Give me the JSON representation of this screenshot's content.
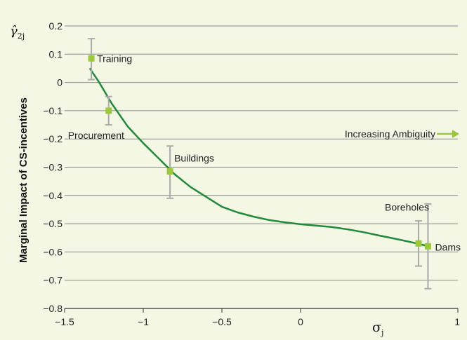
{
  "chart_data": {
    "type": "scatter",
    "ylabel": "Marginal Impact of CS-incentives",
    "y_symbol": "γ̂",
    "y_symbol_sub": "2j",
    "x_symbol": "σ",
    "x_symbol_sub": "j",
    "xlim": [
      -1.5,
      1
    ],
    "ylim": [
      -0.8,
      0.2
    ],
    "x_ticks": [
      "−1.5",
      "−1",
      "−0.5",
      "0",
      "1"
    ],
    "x_tick_values": [
      -1.5,
      -1,
      -0.5,
      0,
      1
    ],
    "y_ticks": [
      "0.2",
      "0.1",
      "0",
      "−0.1",
      "−0.2",
      "−0.3",
      "−0.4",
      "−0.5",
      "−0.6",
      "−0.7",
      "−0.8"
    ],
    "y_tick_values": [
      0.2,
      0.1,
      0,
      -0.1,
      -0.2,
      -0.3,
      -0.4,
      -0.5,
      -0.6,
      -0.7,
      -0.8
    ],
    "grid": "horizontal",
    "annotation": "Increasing Ambiguity",
    "points": [
      {
        "label": "Training",
        "x": -1.33,
        "y": 0.085,
        "err_low": 0.01,
        "err_high": 0.155
      },
      {
        "label": "Procurement",
        "x": -1.22,
        "y": -0.1,
        "err_low": -0.15,
        "err_high": -0.05
      },
      {
        "label": "Buildings",
        "x": -0.83,
        "y": -0.315,
        "err_low": -0.41,
        "err_high": -0.225
      },
      {
        "label": "Boreholes",
        "x": 0.75,
        "y": -0.57,
        "err_low": -0.65,
        "err_high": -0.49
      },
      {
        "label": "Dams",
        "x": 0.81,
        "y": -0.58,
        "err_low": -0.73,
        "err_high": -0.43
      }
    ],
    "fit_line": {
      "x": [
        -1.34,
        -1.28,
        -1.2,
        -1.1,
        -1.0,
        -0.9,
        -0.8,
        -0.7,
        -0.6,
        -0.5,
        -0.4,
        -0.3,
        -0.2,
        -0.1,
        0.0,
        0.1,
        0.2,
        0.3,
        0.4,
        0.5,
        0.6,
        0.7,
        0.8
      ],
      "y": [
        0.05,
        0.0,
        -0.075,
        -0.155,
        -0.215,
        -0.27,
        -0.325,
        -0.37,
        -0.405,
        -0.44,
        -0.46,
        -0.475,
        -0.487,
        -0.495,
        -0.502,
        -0.507,
        -0.512,
        -0.52,
        -0.53,
        -0.542,
        -0.553,
        -0.565,
        -0.578
      ]
    },
    "colors": {
      "line": "#1e8a3a",
      "marker": "#9cc93b",
      "error": "#aaaaaa",
      "arrow": "#9cc93b",
      "grid": "#8a8a8a"
    }
  }
}
